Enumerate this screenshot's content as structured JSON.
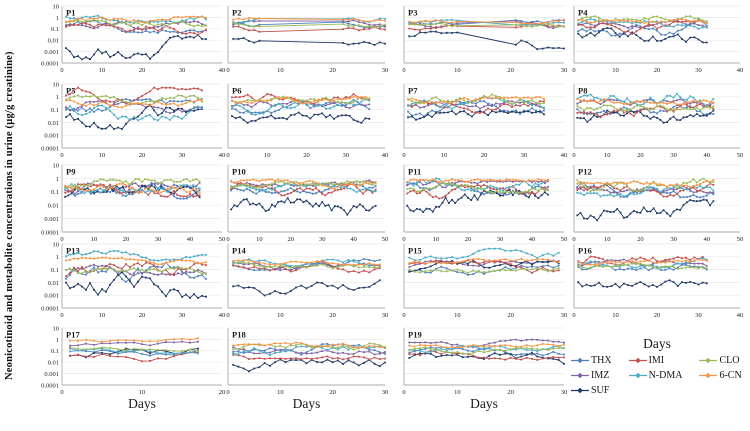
{
  "figure": {
    "y_axis_label": "Neonicotinoid and metabolite concentrations  in urine (µg/g creatinine)",
    "x_axis_label": "Days",
    "background": "#ffffff"
  },
  "legend": {
    "position": "bottom-right",
    "columns": [
      [
        "THX",
        "IMZ",
        "SUF"
      ],
      [
        "IMI",
        "N-DMA"
      ],
      [
        "CLO",
        "6-CN"
      ]
    ],
    "entries": [
      {
        "name": "THX",
        "color": "#4F81BD"
      },
      {
        "name": "IMZ",
        "color": "#8064A2"
      },
      {
        "name": "SUF",
        "color": "#1F3864"
      },
      {
        "name": "IMI",
        "color": "#C0504D"
      },
      {
        "name": "N-DMA",
        "color": "#4BACC6"
      },
      {
        "name": "CLO",
        "color": "#9BBB59"
      },
      {
        "name": "6-CN",
        "color": "#F79646"
      }
    ]
  },
  "chart_data": {
    "type": "line",
    "title": "",
    "xlabel": "Days",
    "ylabel": "Neonicotinoid and metabolite concentrations  in urine (µg/g creatinine)",
    "y_scale": "log",
    "ylim": [
      0.0001,
      10
    ],
    "y_tick_labels": [
      "10",
      "1",
      "0.1",
      "0.01",
      "0.001",
      "0.0001"
    ],
    "grid": "horizontal-decade-lines",
    "series_order": [
      "THX",
      "IMZ",
      "SUF",
      "IMI",
      "N-DMA",
      "CLO",
      "6-CN"
    ],
    "series_colors": {
      "THX": "#4F81BD",
      "IMZ": "#8064A2",
      "SUF": "#1F3864",
      "IMI": "#C0504D",
      "N-DMA": "#4BACC6",
      "CLO": "#9BBB59",
      "6-CN": "#F79646"
    },
    "series_note": "values are daily urinary concentrations; per-panel series encoded as [log10_median, log10_amplitude, optional_drift_per_day] estimated from the plot",
    "panels": [
      {
        "label": "P1",
        "xlim": [
          0,
          40
        ],
        "x_ticks": [
          0,
          10,
          20,
          30,
          40
        ],
        "xend": 36,
        "seed": 1,
        "days_label": false,
        "series": {
          "THX": [
            -0.8,
            0.5
          ],
          "IMZ": [
            -0.7,
            0.4
          ],
          "SUF": [
            -2.6,
            0.95
          ],
          "IMI": [
            -1.0,
            0.5
          ],
          "N-DMA": [
            0.15,
            0.55
          ],
          "CLO": [
            -0.35,
            0.4
          ],
          "6-CN": [
            -0.3,
            0.35
          ]
        }
      },
      {
        "label": "P2",
        "xlim": [
          0,
          30
        ],
        "x_ticks": [
          0,
          10,
          20,
          30
        ],
        "xend": 30,
        "seed": 2,
        "gap": [
          6,
          22
        ],
        "days_label": false,
        "series": {
          "THX": [
            -0.6,
            0.35
          ],
          "IMZ": [
            -0.55,
            0.3
          ],
          "SUF": [
            -1.9,
            0.5
          ],
          "IMI": [
            -1.0,
            0.4
          ],
          "N-DMA": [
            -0.3,
            0.3
          ],
          "CLO": [
            -0.5,
            0.3
          ],
          "6-CN": [
            -0.15,
            0.25
          ]
        }
      },
      {
        "label": "P3",
        "xlim": [
          0,
          30
        ],
        "x_ticks": [
          0,
          10,
          20,
          30
        ],
        "xend": 30,
        "seed": 3,
        "gap": [
          10,
          21
        ],
        "days_label": false,
        "series": {
          "THX": [
            -0.55,
            0.3
          ],
          "IMZ": [
            -0.6,
            0.3
          ],
          "SUF": [
            -2.0,
            0.7
          ],
          "IMI": [
            -0.95,
            0.35
          ],
          "N-DMA": [
            -0.5,
            0.25
          ],
          "CLO": [
            -0.55,
            0.25
          ],
          "6-CN": [
            -0.3,
            0.25
          ]
        }
      },
      {
        "label": "P4",
        "xlim": [
          0,
          40
        ],
        "x_ticks": [
          0,
          10,
          20,
          30,
          40
        ],
        "xend": 32,
        "seed": 4,
        "days_label": false,
        "series": {
          "THX": [
            -0.9,
            0.65
          ],
          "IMZ": [
            -0.55,
            0.35
          ],
          "SUF": [
            -1.35,
            0.75
          ],
          "IMI": [
            -0.9,
            0.55
          ],
          "N-DMA": [
            -0.6,
            0.45
          ],
          "CLO": [
            -0.4,
            0.45
          ],
          "6-CN": [
            -0.3,
            0.3
          ]
        }
      },
      {
        "label": "P5",
        "xlim": [
          0,
          40
        ],
        "x_ticks": [
          0,
          10,
          20,
          30,
          40
        ],
        "xend": 35,
        "seed": 5,
        "days_label": false,
        "series": {
          "THX": [
            -0.8,
            0.55
          ],
          "IMZ": [
            -0.85,
            0.5
          ],
          "SUF": [
            -1.6,
            0.85
          ],
          "IMI": [
            0.1,
            0.55
          ],
          "N-DMA": [
            -1.1,
            0.65
          ],
          "CLO": [
            -0.5,
            0.55
          ],
          "6-CN": [
            -0.45,
            0.35
          ]
        }
      },
      {
        "label": "P6",
        "xlim": [
          0,
          40
        ],
        "x_ticks": [
          0,
          10,
          20,
          30,
          40
        ],
        "xend": 36,
        "seed": 6,
        "days_label": false,
        "series": {
          "THX": [
            -0.7,
            0.5
          ],
          "IMZ": [
            -0.75,
            0.45
          ],
          "SUF": [
            -1.4,
            0.65
          ],
          "IMI": [
            0.0,
            0.5
          ],
          "N-DMA": [
            -0.8,
            0.55
          ],
          "CLO": [
            -0.5,
            0.45
          ],
          "6-CN": [
            -0.35,
            0.3
          ]
        }
      },
      {
        "label": "P7",
        "xlim": [
          0,
          40
        ],
        "x_ticks": [
          0,
          10,
          20,
          30,
          40
        ],
        "xend": 35,
        "seed": 7,
        "days_label": false,
        "series": {
          "THX": [
            -0.9,
            0.55
          ],
          "IMZ": [
            -0.7,
            0.4
          ],
          "SUF": [
            -1.8,
            0.6
          ],
          "IMI": [
            -0.8,
            0.45
          ],
          "N-DMA": [
            -0.55,
            0.45
          ],
          "CLO": [
            -0.3,
            0.45
          ],
          "6-CN": [
            -0.35,
            0.3
          ]
        }
      },
      {
        "label": "P8",
        "xlim": [
          0,
          50
        ],
        "x_ticks": [
          0,
          10,
          20,
          30,
          40,
          50
        ],
        "xend": 42,
        "seed": 8,
        "days_label": false,
        "series": {
          "THX": [
            -0.8,
            0.5
          ],
          "IMZ": [
            -0.6,
            0.35
          ],
          "SUF": [
            -1.8,
            0.65
          ],
          "IMI": [
            -1.1,
            0.55
          ],
          "N-DMA": [
            -0.35,
            0.55,
            0.012
          ],
          "CLO": [
            -0.6,
            0.4
          ],
          "6-CN": [
            -0.3,
            0.3
          ]
        }
      },
      {
        "label": "P9",
        "xlim": [
          0,
          50
        ],
        "x_ticks": [
          0,
          10,
          20,
          30,
          40,
          50
        ],
        "xend": 43,
        "seed": 9,
        "days_label": false,
        "series": {
          "THX": [
            -0.9,
            0.55
          ],
          "IMZ": [
            -0.8,
            0.45
          ],
          "SUF": [
            -1.5,
            0.85
          ],
          "IMI": [
            -1.1,
            0.6
          ],
          "N-DMA": [
            -0.75,
            0.45
          ],
          "CLO": [
            -0.55,
            0.45
          ],
          "6-CN": [
            -0.6,
            0.45
          ]
        }
      },
      {
        "label": "P10",
        "xlim": [
          0,
          50
        ],
        "x_ticks": [
          0,
          10,
          20,
          30,
          40,
          50
        ],
        "xend": 47,
        "seed": 10,
        "days_label": false,
        "series": {
          "THX": [
            -0.75,
            0.35
          ],
          "IMZ": [
            -0.25,
            0.3
          ],
          "SUF": [
            -2.3,
            0.75
          ],
          "IMI": [
            -0.8,
            0.45
          ],
          "N-DMA": [
            -0.7,
            0.3
          ],
          "CLO": [
            -0.6,
            0.35
          ],
          "6-CN": [
            -0.4,
            0.3
          ]
        }
      },
      {
        "label": "P11",
        "xlim": [
          0,
          50
        ],
        "x_ticks": [
          0,
          10,
          20,
          30,
          40,
          50
        ],
        "xend": 45,
        "seed": 11,
        "days_label": false,
        "series": {
          "THX": [
            -0.7,
            0.45
          ],
          "IMZ": [
            -0.65,
            0.45
          ],
          "SUF": [
            -1.7,
            0.75
          ],
          "IMI": [
            -1.0,
            0.45
          ],
          "N-DMA": [
            -0.4,
            0.45
          ],
          "CLO": [
            -0.7,
            0.35
          ],
          "6-CN": [
            -0.35,
            0.25
          ]
        }
      },
      {
        "label": "P12",
        "xlim": [
          0,
          50
        ],
        "x_ticks": [
          0,
          10,
          20,
          30,
          40,
          50
        ],
        "xend": 42,
        "seed": 12,
        "days_label": false,
        "series": {
          "THX": [
            -0.8,
            0.55
          ],
          "IMZ": [
            -0.7,
            0.35
          ],
          "SUF": [
            -2.4,
            0.75
          ],
          "IMI": [
            -0.9,
            0.45
          ],
          "N-DMA": [
            -0.9,
            0.45
          ],
          "CLO": [
            -0.35,
            0.55
          ],
          "6-CN": [
            -0.4,
            0.25
          ]
        }
      },
      {
        "label": "P13",
        "xlim": [
          0,
          40
        ],
        "x_ticks": [
          0,
          10,
          20,
          30,
          40
        ],
        "xend": 36,
        "seed": 13,
        "days_label": false,
        "series": {
          "THX": [
            -1.3,
            0.85
          ],
          "IMZ": [
            -1.0,
            0.4
          ],
          "SUF": [
            -2.1,
            1.05
          ],
          "IMI": [
            -1.3,
            0.75
          ],
          "N-DMA": [
            0.1,
            0.35
          ],
          "CLO": [
            -0.9,
            0.4
          ],
          "6-CN": [
            -0.35,
            0.25
          ]
        }
      },
      {
        "label": "P14",
        "xlim": [
          0,
          30
        ],
        "x_ticks": [
          0,
          10,
          20,
          30
        ],
        "xend": 29,
        "seed": 14,
        "days_label": false,
        "series": {
          "THX": [
            -0.6,
            0.4
          ],
          "IMZ": [
            -0.65,
            0.4
          ],
          "SUF": [
            -2.5,
            0.6
          ],
          "IMI": [
            -0.7,
            0.5,
            0.01
          ],
          "N-DMA": [
            -0.45,
            0.35
          ],
          "CLO": [
            -0.55,
            0.3
          ],
          "6-CN": [
            -0.35,
            0.25
          ]
        }
      },
      {
        "label": "P15",
        "xlim": [
          0,
          30
        ],
        "x_ticks": [
          0,
          10,
          20,
          30
        ],
        "xend": 29,
        "seed": 15,
        "days_label": false,
        "series": {
          "THX": [
            -1.3,
            0.55
          ],
          "IMZ": [
            -0.7,
            0.35
          ],
          "SUF": [
            -0.9,
            0.55
          ],
          "IMI": [
            -0.75,
            0.45
          ],
          "N-DMA": [
            0.15,
            0.45
          ],
          "CLO": [
            -0.9,
            0.3
          ],
          "6-CN": [
            -0.5,
            0.3
          ]
        }
      },
      {
        "label": "P16",
        "xlim": [
          0,
          40
        ],
        "x_ticks": [
          0,
          10,
          20,
          30,
          40
        ],
        "xend": 32,
        "seed": 16,
        "days_label": true,
        "series": {
          "THX": [
            -0.6,
            0.4
          ],
          "IMZ": [
            -0.55,
            0.3
          ],
          "SUF": [
            -1.7,
            0.6,
            -0.004
          ],
          "IMI": [
            -0.6,
            0.55
          ],
          "N-DMA": [
            -0.5,
            0.35
          ],
          "CLO": [
            -0.6,
            0.3
          ],
          "6-CN": [
            -0.35,
            0.25
          ]
        }
      },
      {
        "label": "P17",
        "xlim": [
          0,
          20
        ],
        "x_ticks": [
          0,
          10,
          20
        ],
        "xend": 17,
        "seed": 17,
        "days_label": true,
        "series": {
          "THX": [
            -0.9,
            0.45
          ],
          "IMZ": [
            -0.5,
            0.3
          ],
          "SUF": [
            -1.6,
            0.75
          ],
          "IMI": [
            -1.5,
            0.45
          ],
          "N-DMA": [
            -0.95,
            0.35
          ],
          "CLO": [
            -0.8,
            0.35
          ],
          "6-CN": [
            -0.1,
            0.25
          ]
        }
      },
      {
        "label": "P18",
        "xlim": [
          0,
          30
        ],
        "x_ticks": [
          0,
          10,
          20,
          30
        ],
        "xend": 30,
        "seed": 18,
        "days_label": true,
        "series": {
          "THX": [
            -0.9,
            0.45
          ],
          "IMZ": [
            -0.8,
            0.45
          ],
          "SUF": [
            -2.5,
            0.65
          ],
          "IMI": [
            -1.3,
            0.4
          ],
          "N-DMA": [
            -1.3,
            0.65
          ],
          "CLO": [
            -0.8,
            0.4
          ],
          "6-CN": [
            -0.4,
            0.3
          ]
        }
      },
      {
        "label": "P19",
        "xlim": [
          0,
          30
        ],
        "x_ticks": [
          0,
          10,
          20,
          30
        ],
        "xend": 30,
        "seed": 19,
        "days_label": true,
        "series": {
          "THX": [
            -1.1,
            0.4
          ],
          "IMZ": [
            -0.35,
            0.3
          ],
          "SUF": [
            -1.9,
            0.65
          ],
          "IMI": [
            -1.3,
            0.45
          ],
          "N-DMA": [
            -0.9,
            0.35
          ],
          "CLO": [
            -1.0,
            0.3
          ],
          "6-CN": [
            -0.5,
            0.25
          ]
        }
      }
    ]
  }
}
